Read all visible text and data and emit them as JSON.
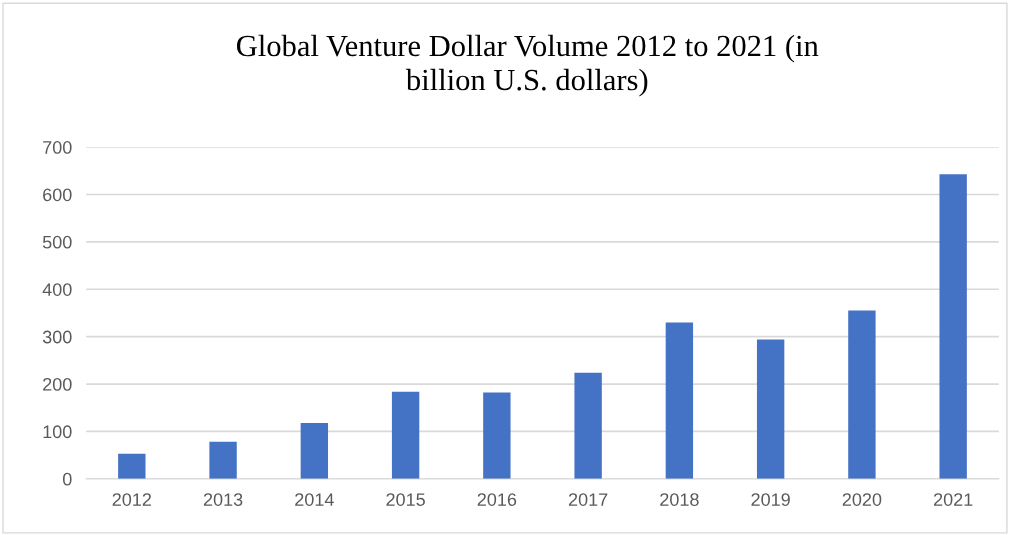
{
  "chart_data": {
    "type": "bar",
    "title": "Global Venture Dollar Volume 2012 to 2021 (in\nbillion U.S. dollars)",
    "categories": [
      "2012",
      "2013",
      "2014",
      "2015",
      "2016",
      "2017",
      "2018",
      "2019",
      "2020",
      "2021"
    ],
    "values": [
      53,
      78,
      118,
      184,
      182,
      224,
      330,
      294,
      355,
      643
    ],
    "color": "#4472c4",
    "ylim": [
      0,
      700
    ],
    "yticks": [
      0,
      100,
      200,
      300,
      400,
      500,
      600,
      700
    ],
    "grid": "y"
  }
}
